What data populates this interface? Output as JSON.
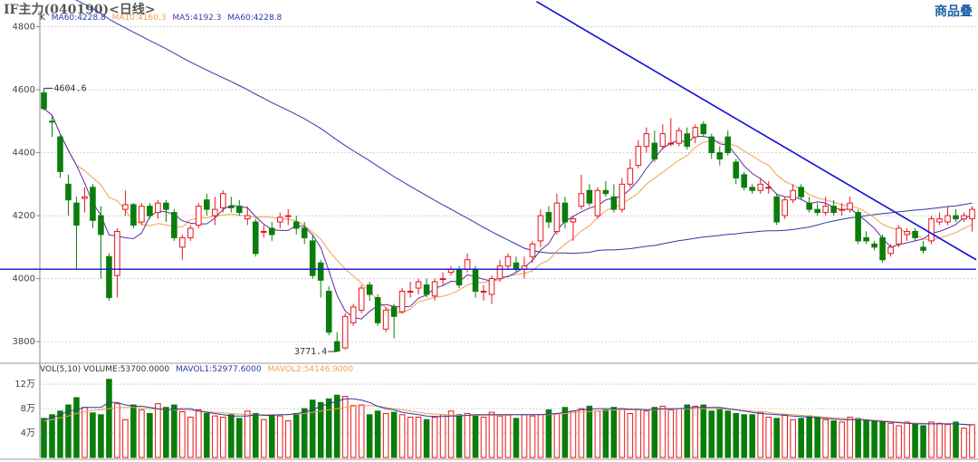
{
  "header": {
    "title": "IF主力(040190)<日线>",
    "corner_label": "商品叠"
  },
  "ma_legend": {
    "k": "K",
    "ma60": "MA60:4228.8",
    "ma10": "MA10:4160.3",
    "ma5": "MA5:4192.3",
    "ma60b": "MA60:4228.8"
  },
  "vol_legend": {
    "vol": "VOL(5,10) VOLUME:53700.0000",
    "mavol1": "MAVOL1:52977.6000",
    "mavol2": "MAVOL2:54146.9000"
  },
  "colors": {
    "up": "#e8141a",
    "down": "#0b7d0b",
    "ma5": "#5b2da0",
    "ma10": "#f0a050",
    "ma60": "#2a3aa8",
    "trend": "#1010d8",
    "support": "#1010d8",
    "grid": "#cfcfcf"
  },
  "chart_data": {
    "type": "candlestick",
    "title": "IF主力(040190)<日线>",
    "price_axis": {
      "ticks": [
        3800,
        4000,
        4200,
        4400,
        4600,
        4800
      ],
      "ylim": [
        3740,
        4810
      ]
    },
    "volume_axis": {
      "ticks": [
        40000,
        80000,
        120000
      ],
      "tick_labels": [
        "4万",
        "8万",
        "12万"
      ],
      "ylim": [
        0,
        135000
      ]
    },
    "annotations": [
      {
        "text": "4604.6",
        "index": 0,
        "value": 4604.6
      },
      {
        "text": "3771.4",
        "index": 36,
        "value": 3771.4
      }
    ],
    "support_line": 4030,
    "trend_line": [
      {
        "index": 60.5,
        "value": 4880
      },
      {
        "index": 114.5,
        "value": 4060
      }
    ],
    "candles": [
      [
        4590,
        4540,
        4604.6,
        4535
      ],
      [
        4500,
        4498,
        4515,
        4450
      ],
      [
        4450,
        4340,
        4455,
        4320
      ],
      [
        4300,
        4250,
        4330,
        4200
      ],
      [
        4240,
        4170,
        4260,
        4030
      ],
      [
        4255,
        4260,
        4290,
        4210
      ],
      [
        4290,
        4185,
        4300,
        4160
      ],
      [
        4200,
        4140,
        4230,
        4000
      ],
      [
        4070,
        3940,
        4080,
        3930
      ],
      [
        4010,
        4150,
        4160,
        3940
      ],
      [
        4220,
        4235,
        4280,
        4200
      ],
      [
        4235,
        4170,
        4240,
        4160
      ],
      [
        4180,
        4230,
        4240,
        4170
      ],
      [
        4230,
        4200,
        4240,
        4190
      ],
      [
        4210,
        4240,
        4250,
        4190
      ],
      [
        4240,
        4220,
        4250,
        4180
      ],
      [
        4210,
        4130,
        4220,
        4120
      ],
      [
        4100,
        4130,
        4140,
        4060
      ],
      [
        4130,
        4160,
        4170,
        4120
      ],
      [
        4170,
        4230,
        4240,
        4160
      ],
      [
        4250,
        4220,
        4270,
        4200
      ],
      [
        4200,
        4220,
        4260,
        4170
      ],
      [
        4225,
        4270,
        4280,
        4210
      ],
      [
        4230,
        4225,
        4260,
        4210
      ],
      [
        4230,
        4210,
        4250,
        4200
      ],
      [
        4190,
        4200,
        4230,
        4170
      ],
      [
        4180,
        4080,
        4190,
        4070
      ],
      [
        4150,
        4150,
        4170,
        4130
      ],
      [
        4160,
        4140,
        4180,
        4120
      ],
      [
        4180,
        4195,
        4210,
        4160
      ],
      [
        4200,
        4200,
        4220,
        4170
      ],
      [
        4180,
        4160,
        4200,
        4140
      ],
      [
        4160,
        4130,
        4180,
        4110
      ],
      [
        4120,
        4010,
        4140,
        4000
      ],
      [
        4050,
        3995,
        4060,
        3940
      ],
      [
        3960,
        3830,
        3975,
        3820
      ],
      [
        3800,
        3770,
        3830,
        3771.4
      ],
      [
        3780,
        3880,
        3890,
        3775
      ],
      [
        3860,
        3910,
        3920,
        3850
      ],
      [
        3900,
        3970,
        3980,
        3890
      ],
      [
        3980,
        3950,
        3990,
        3930
      ],
      [
        3940,
        3860,
        3950,
        3850
      ],
      [
        3840,
        3900,
        3910,
        3830
      ],
      [
        3910,
        3880,
        3920,
        3810
      ],
      [
        3895,
        3960,
        3970,
        3890
      ],
      [
        3960,
        3960,
        3990,
        3940
      ],
      [
        3970,
        3990,
        4000,
        3950
      ],
      [
        3980,
        3950,
        4000,
        3940
      ],
      [
        3945,
        3990,
        4000,
        3930
      ],
      [
        4000,
        4000,
        4020,
        3980
      ],
      [
        4020,
        4030,
        4040,
        4010
      ],
      [
        4030,
        3980,
        4040,
        3970
      ],
      [
        4030,
        4060,
        4080,
        4020
      ],
      [
        4030,
        3960,
        4040,
        3940
      ],
      [
        3960,
        3960,
        3980,
        3930
      ],
      [
        3950,
        4000,
        4010,
        3920
      ],
      [
        4000,
        4040,
        4060,
        3990
      ],
      [
        4040,
        4070,
        4080,
        4030
      ],
      [
        4050,
        4030,
        4070,
        4020
      ],
      [
        4030,
        4040,
        4070,
        4000
      ],
      [
        4070,
        4110,
        4120,
        4050
      ],
      [
        4120,
        4200,
        4220,
        4100
      ],
      [
        4210,
        4180,
        4230,
        4160
      ],
      [
        4150,
        4240,
        4270,
        4140
      ],
      [
        4240,
        4180,
        4260,
        4160
      ],
      [
        4180,
        4190,
        4200,
        4120
      ],
      [
        4230,
        4270,
        4330,
        4220
      ],
      [
        4280,
        4240,
        4300,
        4230
      ],
      [
        4200,
        4280,
        4290,
        4190
      ],
      [
        4280,
        4270,
        4310,
        4260
      ],
      [
        4260,
        4220,
        4300,
        4210
      ],
      [
        4220,
        4300,
        4320,
        4210
      ],
      [
        4300,
        4350,
        4380,
        4290
      ],
      [
        4360,
        4420,
        4440,
        4350
      ],
      [
        4420,
        4460,
        4480,
        4400
      ],
      [
        4430,
        4380,
        4470,
        4370
      ],
      [
        4420,
        4460,
        4490,
        4410
      ],
      [
        4430,
        4430,
        4510,
        4420
      ],
      [
        4430,
        4470,
        4480,
        4420
      ],
      [
        4460,
        4420,
        4480,
        4410
      ],
      [
        4450,
        4480,
        4490,
        4430
      ],
      [
        4490,
        4460,
        4500,
        4450
      ],
      [
        4450,
        4400,
        4460,
        4380
      ],
      [
        4400,
        4380,
        4420,
        4360
      ],
      [
        4450,
        4400,
        4470,
        4390
      ],
      [
        4370,
        4320,
        4380,
        4300
      ],
      [
        4330,
        4290,
        4340,
        4280
      ],
      [
        4290,
        4280,
        4300,
        4270
      ],
      [
        4280,
        4300,
        4320,
        4270
      ],
      [
        4290,
        4290,
        4310,
        4270
      ],
      [
        4260,
        4180,
        4270,
        4170
      ],
      [
        4200,
        4250,
        4260,
        4190
      ],
      [
        4250,
        4280,
        4300,
        4240
      ],
      [
        4290,
        4260,
        4300,
        4250
      ],
      [
        4240,
        4220,
        4260,
        4210
      ],
      [
        4220,
        4210,
        4240,
        4200
      ],
      [
        4210,
        4230,
        4260,
        4200
      ],
      [
        4230,
        4210,
        4250,
        4200
      ],
      [
        4220,
        4220,
        4240,
        4200
      ],
      [
        4220,
        4240,
        4260,
        4210
      ],
      [
        4210,
        4120,
        4220,
        4110
      ],
      [
        4130,
        4120,
        4150,
        4110
      ],
      [
        4110,
        4100,
        4120,
        4090
      ],
      [
        4130,
        4060,
        4140,
        4050
      ],
      [
        4080,
        4100,
        4110,
        4070
      ],
      [
        4110,
        4160,
        4170,
        4100
      ],
      [
        4140,
        4150,
        4160,
        4120
      ],
      [
        4150,
        4130,
        4160,
        4120
      ],
      [
        4100,
        4090,
        4120,
        4080
      ],
      [
        4120,
        4190,
        4200,
        4110
      ],
      [
        4180,
        4190,
        4210,
        4170
      ],
      [
        4180,
        4200,
        4230,
        4170
      ],
      [
        4200,
        4190,
        4220,
        4180
      ],
      [
        4190,
        4200,
        4210,
        4180
      ],
      [
        4190,
        4220,
        4230,
        4150
      ]
    ],
    "volume": [
      64000,
      70000,
      76000,
      86000,
      98000,
      82000,
      73000,
      70000,
      128000,
      88000,
      62000,
      86000,
      78000,
      72000,
      88000,
      82000,
      86000,
      75000,
      66000,
      78000,
      72000,
      68000,
      66000,
      70000,
      64000,
      76000,
      72000,
      62000,
      70000,
      68000,
      60000,
      72000,
      80000,
      94000,
      90000,
      96000,
      102000,
      100000,
      85000,
      86000,
      70000,
      76000,
      72000,
      74000,
      70000,
      66000,
      66000,
      62000,
      66000,
      70000,
      76000,
      70000,
      72000,
      68000,
      66000,
      74000,
      68000,
      70000,
      64000,
      70000,
      68000,
      70000,
      78000,
      72000,
      82000,
      76000,
      80000,
      84000,
      76000,
      78000,
      82000,
      80000,
      72000,
      78000,
      76000,
      82000,
      84000,
      78000,
      80000,
      86000,
      84000,
      86000,
      76000,
      80000,
      76000,
      72000,
      70000,
      70000,
      74000,
      66000,
      64000,
      70000,
      62000,
      64000,
      68000,
      66000,
      62000,
      60000,
      58000,
      66000,
      64000,
      62000,
      60000,
      58000,
      56000,
      52000,
      58000,
      56000,
      52000,
      58000,
      56000,
      54000,
      58000,
      48000,
      53700
    ],
    "mavol1_line": [
      62000,
      65000,
      70000,
      76000,
      78000,
      82000,
      82000,
      82000,
      90000,
      90000,
      86000,
      84000,
      84000,
      82000,
      80000,
      78000,
      79000,
      80000,
      80000,
      76000,
      74000,
      72000,
      70000,
      68000,
      68000,
      68000,
      70000,
      69000,
      69000,
      70000,
      70000,
      72000,
      74000,
      78000,
      84000,
      88000,
      92000,
      96000,
      96000,
      94000,
      90000,
      84000,
      80000,
      78000,
      74000,
      72000,
      70000,
      68000,
      67000,
      67000,
      68000,
      68000,
      69000,
      70000,
      70000,
      70000,
      70000,
      70000,
      70000,
      70000,
      70000,
      70000,
      71000,
      72000,
      74000,
      76000,
      78000,
      79000,
      80000,
      80000,
      80000,
      80000,
      79000,
      79000,
      78000,
      79000,
      80000,
      80000,
      80000,
      81000,
      82000,
      82000,
      82000,
      82000,
      80000,
      78000,
      76000,
      74000,
      72000,
      71000,
      70000,
      69000,
      68000,
      67000,
      66000,
      65000,
      64000,
      63000,
      62000,
      62000,
      62000,
      61000,
      60000,
      59000,
      58000,
      57000,
      56000,
      55000,
      55000,
      55000,
      55000,
      55000,
      55000,
      54000,
      52977.6
    ],
    "mavol2_line": [
      60000,
      62000,
      65000,
      68000,
      72000,
      75000,
      77000,
      78000,
      80000,
      82000,
      82000,
      82000,
      81000,
      80000,
      79000,
      78000,
      78000,
      78000,
      77000,
      76000,
      75000,
      74000,
      73000,
      72000,
      71000,
      70000,
      70000,
      70000,
      70000,
      70000,
      70000,
      71000,
      72000,
      74000,
      76000,
      78000,
      80000,
      82000,
      84000,
      85000,
      85000,
      84000,
      82000,
      80000,
      78000,
      76000,
      74000,
      72000,
      71000,
      70000,
      69000,
      69000,
      69000,
      69000,
      69000,
      69000,
      69000,
      69000,
      70000,
      70000,
      70000,
      70000,
      70000,
      71000,
      72000,
      73000,
      74000,
      75000,
      76000,
      77000,
      78000,
      78000,
      78000,
      78000,
      78000,
      78000,
      79000,
      79000,
      80000,
      80000,
      80000,
      80000,
      80000,
      80000,
      79000,
      78000,
      77000,
      76000,
      75000,
      74000,
      72000,
      71000,
      70000,
      69000,
      68000,
      67000,
      66000,
      65000,
      64000,
      63000,
      63000,
      62000,
      61000,
      60000,
      59000,
      58000,
      57000,
      56000,
      56000,
      55000,
      55000,
      55000,
      55000,
      54500,
      54146.9
    ]
  }
}
